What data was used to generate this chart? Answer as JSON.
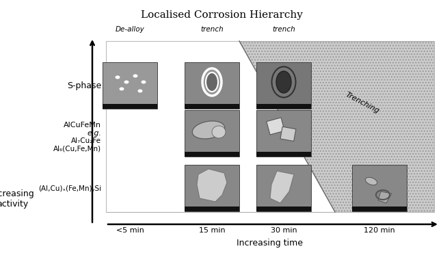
{
  "title": "Localised Corrosion Hierarchy",
  "title_fontsize": 11,
  "bg_color": "#ffffff",
  "time_labels": [
    "<5 min",
    "15 min",
    "30 min",
    "120 min"
  ],
  "col_annotations": [
    {
      "text": "De-alloy",
      "col": 0
    },
    {
      "text": "trench",
      "col": 1
    },
    {
      "text": "trench",
      "col": 2
    }
  ],
  "row_labels": [
    {
      "text": "S-phase",
      "row": 0,
      "fontsize": 9,
      "style": "normal"
    },
    {
      "text": "AlCuFeMn\ne.g.\nAl₇Cu₂Fe\nAl₆(Cu,Fe,Mn)",
      "row": 1,
      "fontsize": 7.5,
      "style": "normal"
    },
    {
      "text": "(Al,Cu)ₓ(Fe,Mn)ᵧSi",
      "row": 2,
      "fontsize": 8,
      "style": "normal"
    }
  ],
  "trenching_text": "Trenching",
  "xaxis_label": "Increasing time",
  "yaxis_label": "Increasing\nactivity",
  "hatch_color": "#bbbbbb",
  "diagonal_color": "#666666",
  "img_bg_dark": "#888888",
  "img_bg_mid": "#aaaaaa",
  "img_bg_light": "#cccccc"
}
